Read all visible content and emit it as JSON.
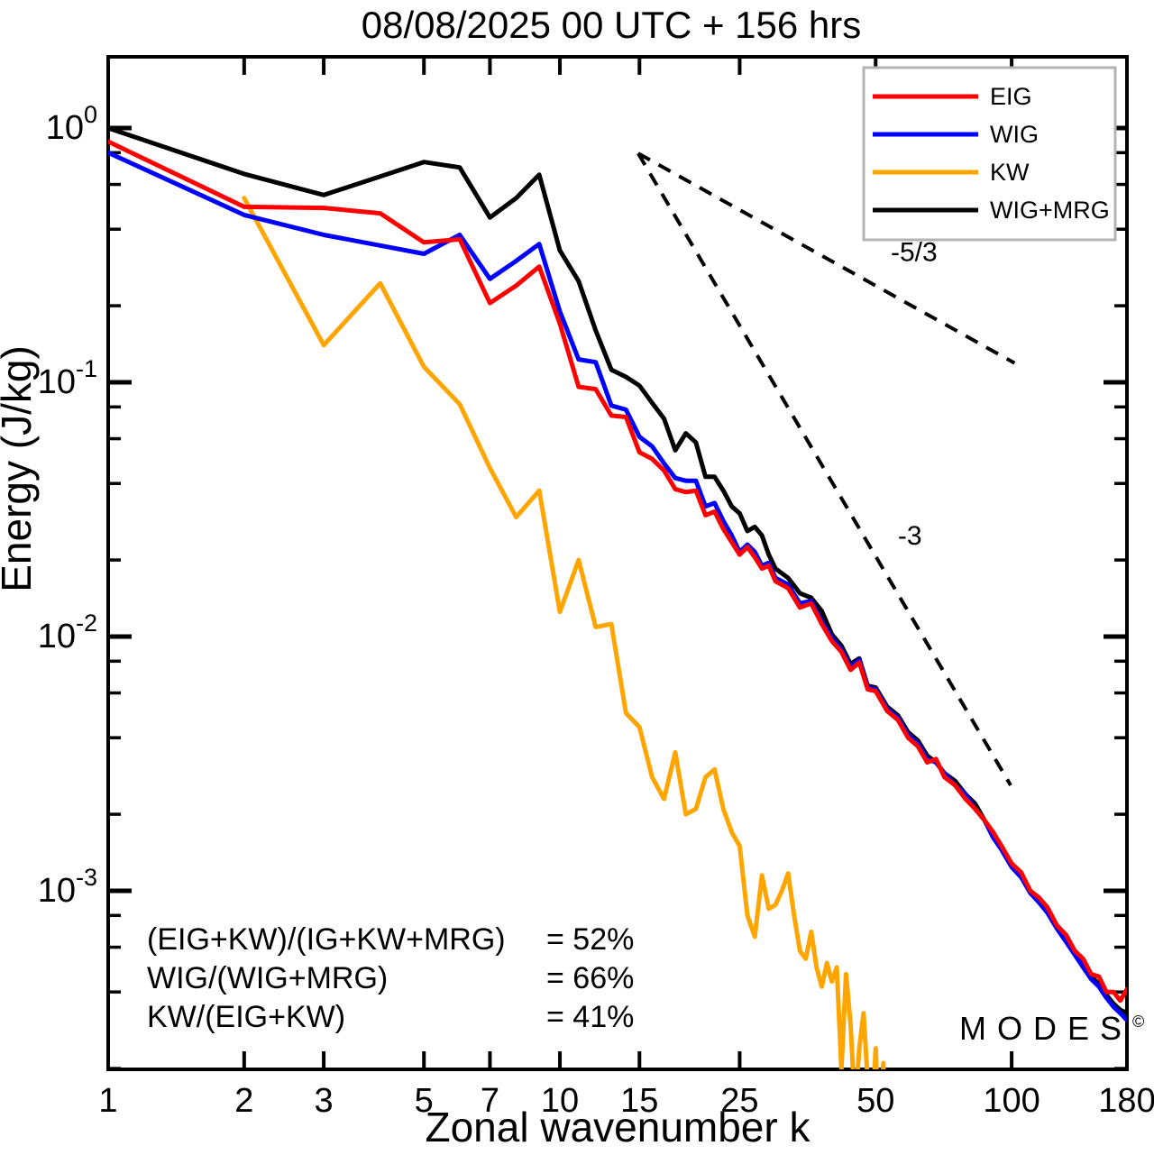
{
  "title": "08/08/2025  00 UTC  + 156 hrs",
  "watermark": {
    "text": "MODES",
    "symbol": "©",
    "color": "#7f7f7f"
  },
  "axes": {
    "x": {
      "label": "Zonal wavenumber k",
      "scale": "log",
      "range": [
        1,
        180
      ],
      "ticks": [
        1,
        2,
        3,
        5,
        7,
        10,
        15,
        25,
        50,
        100,
        180
      ]
    },
    "y": {
      "label": "Energy (J/kg)",
      "scale": "log",
      "E_at_top": 1.906,
      "E_at_bottom": 0.0001985,
      "major_ticks": [
        {
          "value": 1,
          "base": "10",
          "exp": "0"
        },
        {
          "value": 0.1,
          "base": "10",
          "exp": "-1"
        },
        {
          "value": 0.01,
          "base": "10",
          "exp": "-2"
        },
        {
          "value": 0.001,
          "base": "10",
          "exp": "-3"
        }
      ],
      "minor_ticks": [
        0.8,
        0.6,
        0.4,
        0.2,
        0.08,
        0.06,
        0.04,
        0.02,
        0.008,
        0.006,
        0.004,
        0.002,
        0.0008,
        0.0006,
        0.0004,
        0.0002
      ]
    }
  },
  "legend": {
    "border_color": "#b3b3b3",
    "items": [
      {
        "label": "EIG",
        "color": "#ff0000"
      },
      {
        "label": "WIG",
        "color": "#0000ff"
      },
      {
        "label": "KW",
        "color": "#ffa500"
      },
      {
        "label": "WIG+MRG",
        "color": "#000000"
      }
    ]
  },
  "ratio_table": {
    "rows": [
      {
        "expr": "(EIG+KW)/(IG+KW+MRG)",
        "value": "= 52%"
      },
      {
        "expr": "WIG/(WIG+MRG)",
        "value": "= 66%"
      },
      {
        "expr": "KW/(EIG+KW)",
        "value": "= 41%"
      }
    ]
  },
  "chart_data": {
    "type": "line",
    "x_scale": "log",
    "y_scale": "log",
    "xlim": [
      1,
      180
    ],
    "ylim": [
      0.0001985,
      1.906
    ],
    "grid": false,
    "legend_position": "top-right",
    "reference_lines": [
      {
        "label": "-5/3",
        "style": "dashed",
        "points": [
          [
            14.9,
            0.795
          ],
          [
            101.5,
            0.119
          ]
        ],
        "label_at": [
          54,
          0.3
        ]
      },
      {
        "label": "-3",
        "style": "dashed",
        "points": [
          [
            14.9,
            0.795
          ],
          [
            99.5,
            0.0026
          ]
        ],
        "label_at": [
          56,
          0.023
        ]
      }
    ],
    "series": [
      {
        "name": "WIG+MRG",
        "color": "#000000",
        "points": [
          [
            1,
            1.0
          ],
          [
            2,
            0.66
          ],
          [
            3,
            0.545
          ],
          [
            4,
            0.645
          ],
          [
            5,
            0.735
          ],
          [
            6,
            0.7
          ],
          [
            7,
            0.445
          ],
          [
            8,
            0.53
          ],
          [
            9,
            0.655
          ],
          [
            10,
            0.33
          ],
          [
            11,
            0.25
          ],
          [
            12,
            0.16
          ],
          [
            13,
            0.112
          ],
          [
            14,
            0.105
          ],
          [
            15,
            0.097
          ],
          [
            16,
            0.083
          ],
          [
            17,
            0.072
          ],
          [
            18,
            0.054
          ],
          [
            19,
            0.063
          ],
          [
            20,
            0.058
          ],
          [
            21,
            0.0425
          ],
          [
            22,
            0.0425
          ],
          [
            23,
            0.0375
          ],
          [
            24,
            0.0325
          ],
          [
            25,
            0.0305
          ],
          [
            26,
            0.026
          ],
          [
            27,
            0.027
          ],
          [
            28,
            0.025
          ],
          [
            29,
            0.021
          ],
          [
            30,
            0.0185
          ],
          [
            32,
            0.017
          ],
          [
            34,
            0.0148
          ],
          [
            36,
            0.0142
          ],
          [
            38,
            0.0126
          ],
          [
            40,
            0.0102
          ],
          [
            42,
            0.0092
          ],
          [
            44,
            0.0078
          ],
          [
            46,
            0.0082
          ],
          [
            48,
            0.0064
          ],
          [
            50,
            0.0063
          ],
          [
            53,
            0.0053
          ],
          [
            56,
            0.0049
          ],
          [
            59,
            0.0042
          ],
          [
            62,
            0.0039
          ],
          [
            65,
            0.0034
          ],
          [
            68,
            0.0032
          ],
          [
            71,
            0.0029
          ],
          [
            75,
            0.0027
          ],
          [
            79,
            0.0024
          ],
          [
            83,
            0.0022
          ],
          [
            87,
            0.0019
          ],
          [
            91,
            0.00165
          ],
          [
            95,
            0.00147
          ],
          [
            100,
            0.00125
          ],
          [
            105,
            0.00114
          ],
          [
            110,
            0.00099
          ],
          [
            115,
            0.00091
          ],
          [
            120,
            0.00083
          ],
          [
            126,
            0.00072
          ],
          [
            132,
            0.00064
          ],
          [
            138,
            0.00057
          ],
          [
            144,
            0.00051
          ],
          [
            150,
            0.00046
          ],
          [
            156,
            0.00043
          ],
          [
            162,
            0.00039
          ],
          [
            168,
            0.00036
          ],
          [
            174,
            0.00034
          ],
          [
            180,
            0.00033
          ]
        ]
      },
      {
        "name": "KW",
        "color": "#ffa500",
        "points": [
          [
            2,
            0.53
          ],
          [
            3,
            0.14
          ],
          [
            4,
            0.245
          ],
          [
            5,
            0.115
          ],
          [
            6,
            0.082
          ],
          [
            7,
            0.046
          ],
          [
            8,
            0.0295
          ],
          [
            9,
            0.0375
          ],
          [
            10,
            0.0125
          ],
          [
            11,
            0.02
          ],
          [
            12,
            0.0109
          ],
          [
            13,
            0.0112
          ],
          [
            14,
            0.005
          ],
          [
            15,
            0.0044
          ],
          [
            16,
            0.0028
          ],
          [
            17,
            0.0023
          ],
          [
            18,
            0.0035
          ],
          [
            19,
            0.002
          ],
          [
            20,
            0.0021
          ],
          [
            21,
            0.0028
          ],
          [
            22,
            0.003
          ],
          [
            23,
            0.0021
          ],
          [
            24,
            0.0017
          ],
          [
            25,
            0.0015
          ],
          [
            26,
            0.0008
          ],
          [
            27,
            0.00066
          ],
          [
            28,
            0.00115
          ],
          [
            29,
            0.00085
          ],
          [
            30,
            0.00088
          ],
          [
            31,
            0.001
          ],
          [
            32,
            0.00117
          ],
          [
            33,
            0.0008
          ],
          [
            34,
            0.00058
          ],
          [
            35,
            0.00054
          ],
          [
            36,
            0.00069
          ],
          [
            37,
            0.0005
          ],
          [
            38,
            0.00042
          ],
          [
            39,
            0.00052
          ],
          [
            40,
            0.00044
          ],
          [
            41,
            0.0005
          ],
          [
            42,
            0.0002
          ],
          [
            43,
            0.00047
          ],
          [
            44,
            0.0003
          ],
          [
            45,
            0.00014
          ],
          [
            46,
            0.00024
          ],
          [
            47,
            0.00033
          ],
          [
            48,
            0.00018
          ],
          [
            49,
            0.00012
          ],
          [
            50,
            0.00024
          ],
          [
            51,
            0.0001
          ],
          [
            52,
            0.00021
          ],
          [
            53,
            8e-05
          ],
          [
            55,
            0.00013
          ],
          [
            56,
            7e-05
          ]
        ]
      },
      {
        "name": "WIG",
        "color": "#0000ff",
        "points": [
          [
            1,
            0.8
          ],
          [
            2,
            0.455
          ],
          [
            3,
            0.38
          ],
          [
            4,
            0.345
          ],
          [
            5,
            0.32
          ],
          [
            6,
            0.38
          ],
          [
            7,
            0.255
          ],
          [
            8,
            0.3
          ],
          [
            9,
            0.35
          ],
          [
            10,
            0.19
          ],
          [
            11,
            0.123
          ],
          [
            12,
            0.12
          ],
          [
            13,
            0.081
          ],
          [
            14,
            0.078
          ],
          [
            15,
            0.061
          ],
          [
            16,
            0.056
          ],
          [
            17,
            0.048
          ],
          [
            18,
            0.042
          ],
          [
            19,
            0.041
          ],
          [
            20,
            0.041
          ],
          [
            21,
            0.0325
          ],
          [
            22,
            0.0335
          ],
          [
            23,
            0.0285
          ],
          [
            24,
            0.025
          ],
          [
            25,
            0.0215
          ],
          [
            26,
            0.023
          ],
          [
            27,
            0.0215
          ],
          [
            28,
            0.019
          ],
          [
            29,
            0.0195
          ],
          [
            30,
            0.017
          ],
          [
            32,
            0.016
          ],
          [
            34,
            0.0135
          ],
          [
            36,
            0.0138
          ],
          [
            38,
            0.0115
          ],
          [
            40,
            0.0099
          ],
          [
            42,
            0.0089
          ],
          [
            44,
            0.0076
          ],
          [
            46,
            0.0081
          ],
          [
            48,
            0.0063
          ],
          [
            50,
            0.0062
          ],
          [
            53,
            0.0052
          ],
          [
            56,
            0.0048
          ],
          [
            59,
            0.0041
          ],
          [
            62,
            0.0038
          ],
          [
            65,
            0.0033
          ],
          [
            68,
            0.0032
          ],
          [
            71,
            0.0029
          ],
          [
            75,
            0.0026
          ],
          [
            79,
            0.0024
          ],
          [
            83,
            0.0021
          ],
          [
            87,
            0.0019
          ],
          [
            91,
            0.00162
          ],
          [
            95,
            0.00145
          ],
          [
            100,
            0.00124
          ],
          [
            105,
            0.00113
          ],
          [
            110,
            0.00098
          ],
          [
            115,
            0.0009
          ],
          [
            120,
            0.00082
          ],
          [
            126,
            0.00071
          ],
          [
            132,
            0.00063
          ],
          [
            138,
            0.00056
          ],
          [
            144,
            0.0005
          ],
          [
            150,
            0.00045
          ],
          [
            156,
            0.00042
          ],
          [
            162,
            0.00038
          ],
          [
            168,
            0.00035
          ],
          [
            174,
            0.00033
          ],
          [
            180,
            0.00031
          ]
        ]
      },
      {
        "name": "EIG",
        "color": "#ff0000",
        "points": [
          [
            1,
            0.885
          ],
          [
            2,
            0.49
          ],
          [
            3,
            0.485
          ],
          [
            4,
            0.462
          ],
          [
            5,
            0.355
          ],
          [
            6,
            0.365
          ],
          [
            7,
            0.205
          ],
          [
            8,
            0.24
          ],
          [
            9,
            0.285
          ],
          [
            10,
            0.17
          ],
          [
            11,
            0.096
          ],
          [
            12,
            0.094
          ],
          [
            13,
            0.074
          ],
          [
            14,
            0.073
          ],
          [
            15,
            0.053
          ],
          [
            16,
            0.05
          ],
          [
            17,
            0.045
          ],
          [
            18,
            0.038
          ],
          [
            19,
            0.037
          ],
          [
            20,
            0.0375
          ],
          [
            21,
            0.03
          ],
          [
            22,
            0.031
          ],
          [
            23,
            0.0265
          ],
          [
            24,
            0.0235
          ],
          [
            25,
            0.021
          ],
          [
            26,
            0.0225
          ],
          [
            27,
            0.0205
          ],
          [
            28,
            0.0185
          ],
          [
            29,
            0.019
          ],
          [
            30,
            0.0165
          ],
          [
            32,
            0.0155
          ],
          [
            34,
            0.013
          ],
          [
            36,
            0.0135
          ],
          [
            38,
            0.0112
          ],
          [
            40,
            0.0096
          ],
          [
            42,
            0.0087
          ],
          [
            44,
            0.0074
          ],
          [
            46,
            0.0079
          ],
          [
            48,
            0.0062
          ],
          [
            50,
            0.0061
          ],
          [
            53,
            0.0051
          ],
          [
            56,
            0.0047
          ],
          [
            59,
            0.004
          ],
          [
            62,
            0.0037
          ],
          [
            65,
            0.0032
          ],
          [
            68,
            0.0033
          ],
          [
            71,
            0.0028
          ],
          [
            75,
            0.0026
          ],
          [
            79,
            0.0023
          ],
          [
            83,
            0.0021
          ],
          [
            87,
            0.0019
          ],
          [
            91,
            0.0017
          ],
          [
            95,
            0.0015
          ],
          [
            100,
            0.00128
          ],
          [
            105,
            0.00118
          ],
          [
            110,
            0.001
          ],
          [
            115,
            0.00094
          ],
          [
            120,
            0.00086
          ],
          [
            126,
            0.00073
          ],
          [
            132,
            0.00067
          ],
          [
            138,
            0.00058
          ],
          [
            144,
            0.00054
          ],
          [
            150,
            0.00047
          ],
          [
            156,
            0.00046
          ],
          [
            162,
            0.0004
          ],
          [
            168,
            0.0004
          ],
          [
            174,
            0.00037
          ],
          [
            180,
            0.00041
          ]
        ]
      }
    ]
  }
}
